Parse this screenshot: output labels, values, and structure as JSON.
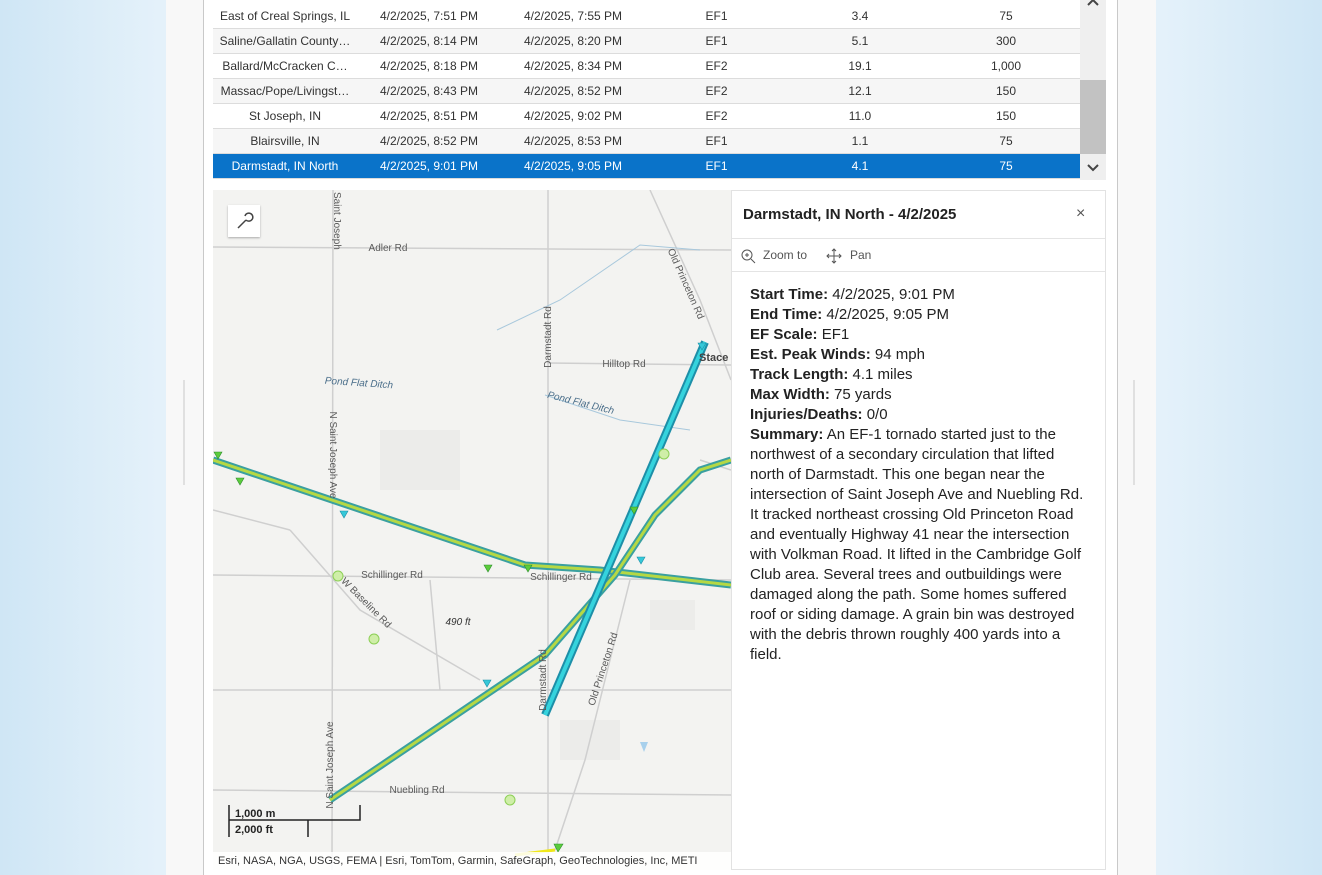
{
  "table": {
    "rows": [
      [
        "East of Creal Springs, IL",
        "4/2/2025, 7:51 PM",
        "4/2/2025, 7:55 PM",
        "EF1",
        "3.4",
        "75"
      ],
      [
        "Saline/Gallatin County…",
        "4/2/2025, 8:14 PM",
        "4/2/2025, 8:20 PM",
        "EF1",
        "5.1",
        "300"
      ],
      [
        "Ballard/McCracken C…",
        "4/2/2025, 8:18 PM",
        "4/2/2025, 8:34 PM",
        "EF2",
        "19.1",
        "1,000"
      ],
      [
        "Massac/Pope/Livingst…",
        "4/2/2025, 8:43 PM",
        "4/2/2025, 8:52 PM",
        "EF2",
        "12.1",
        "150"
      ],
      [
        "St Joseph, IN",
        "4/2/2025, 8:51 PM",
        "4/2/2025, 9:02 PM",
        "EF2",
        "11.0",
        "150"
      ],
      [
        "Blairsville, IN",
        "4/2/2025, 8:52 PM",
        "4/2/2025, 8:53 PM",
        "EF1",
        "1.1",
        "75"
      ],
      [
        "Darmstadt, IN North",
        "4/2/2025, 9:01 PM",
        "4/2/2025, 9:05 PM",
        "EF1",
        "4.1",
        "75"
      ]
    ]
  },
  "map": {
    "road_labels": [
      "Saint Joseph",
      "Adler Rd",
      "Darmstadt Rd",
      "Hilltop Rd",
      "Old Princeton Rd",
      "Stace",
      "Pond Flat Ditch",
      "Pond Flat Ditch",
      "N Saint Joseph Ave",
      "Schillinger Rd",
      "Schillinger Rd",
      "W Baseline Rd",
      "490 ft",
      "Darmstadt Rd",
      "Old Princeton Rd",
      "N Saint Joseph Ave",
      "Nuebling Rd"
    ],
    "scale": [
      "1,000 m",
      "2,000 ft"
    ],
    "attribution": "Esri, NASA, NGA, USGS, FEMA | Esri, TomTom, Garmin, SafeGraph, GeoTechnologies, Inc, METI"
  },
  "popup": {
    "title": "Darmstadt, IN North - 4/2/2025",
    "actions": [
      "Zoom to",
      "Pan"
    ],
    "fields": [
      {
        "label": "Start Time:",
        "value": "4/2/2025, 9:01 PM"
      },
      {
        "label": "End Time:",
        "value": "4/2/2025, 9:05 PM"
      },
      {
        "label": "EF Scale:",
        "value": "EF1"
      },
      {
        "label": "Est. Peak Winds:",
        "value": "94 mph"
      },
      {
        "label": "Track Length:",
        "value": "4.1 miles"
      },
      {
        "label": "Max Width:",
        "value": "75 yards"
      },
      {
        "label": "Injuries/Deaths:",
        "value": "0/0"
      },
      {
        "label": "Summary:",
        "value": "An EF-1 tornado started just to the northwest of a secondary circulation that lifted north of Darmstadt. This one began near the intersection of Saint Joseph Ave and Nuebling Rd. It tracked northeast crossing Old Princeton Road and eventually Highway 41 near the intersection with Volkman Road. It lifted in the Cambridge Golf Club area. Several trees and outbuildings were damaged along the path. Some homes suffered roof or siding damage. A grain bin was destroyed with the debris thrown roughly 400 yards into a field."
      }
    ]
  }
}
